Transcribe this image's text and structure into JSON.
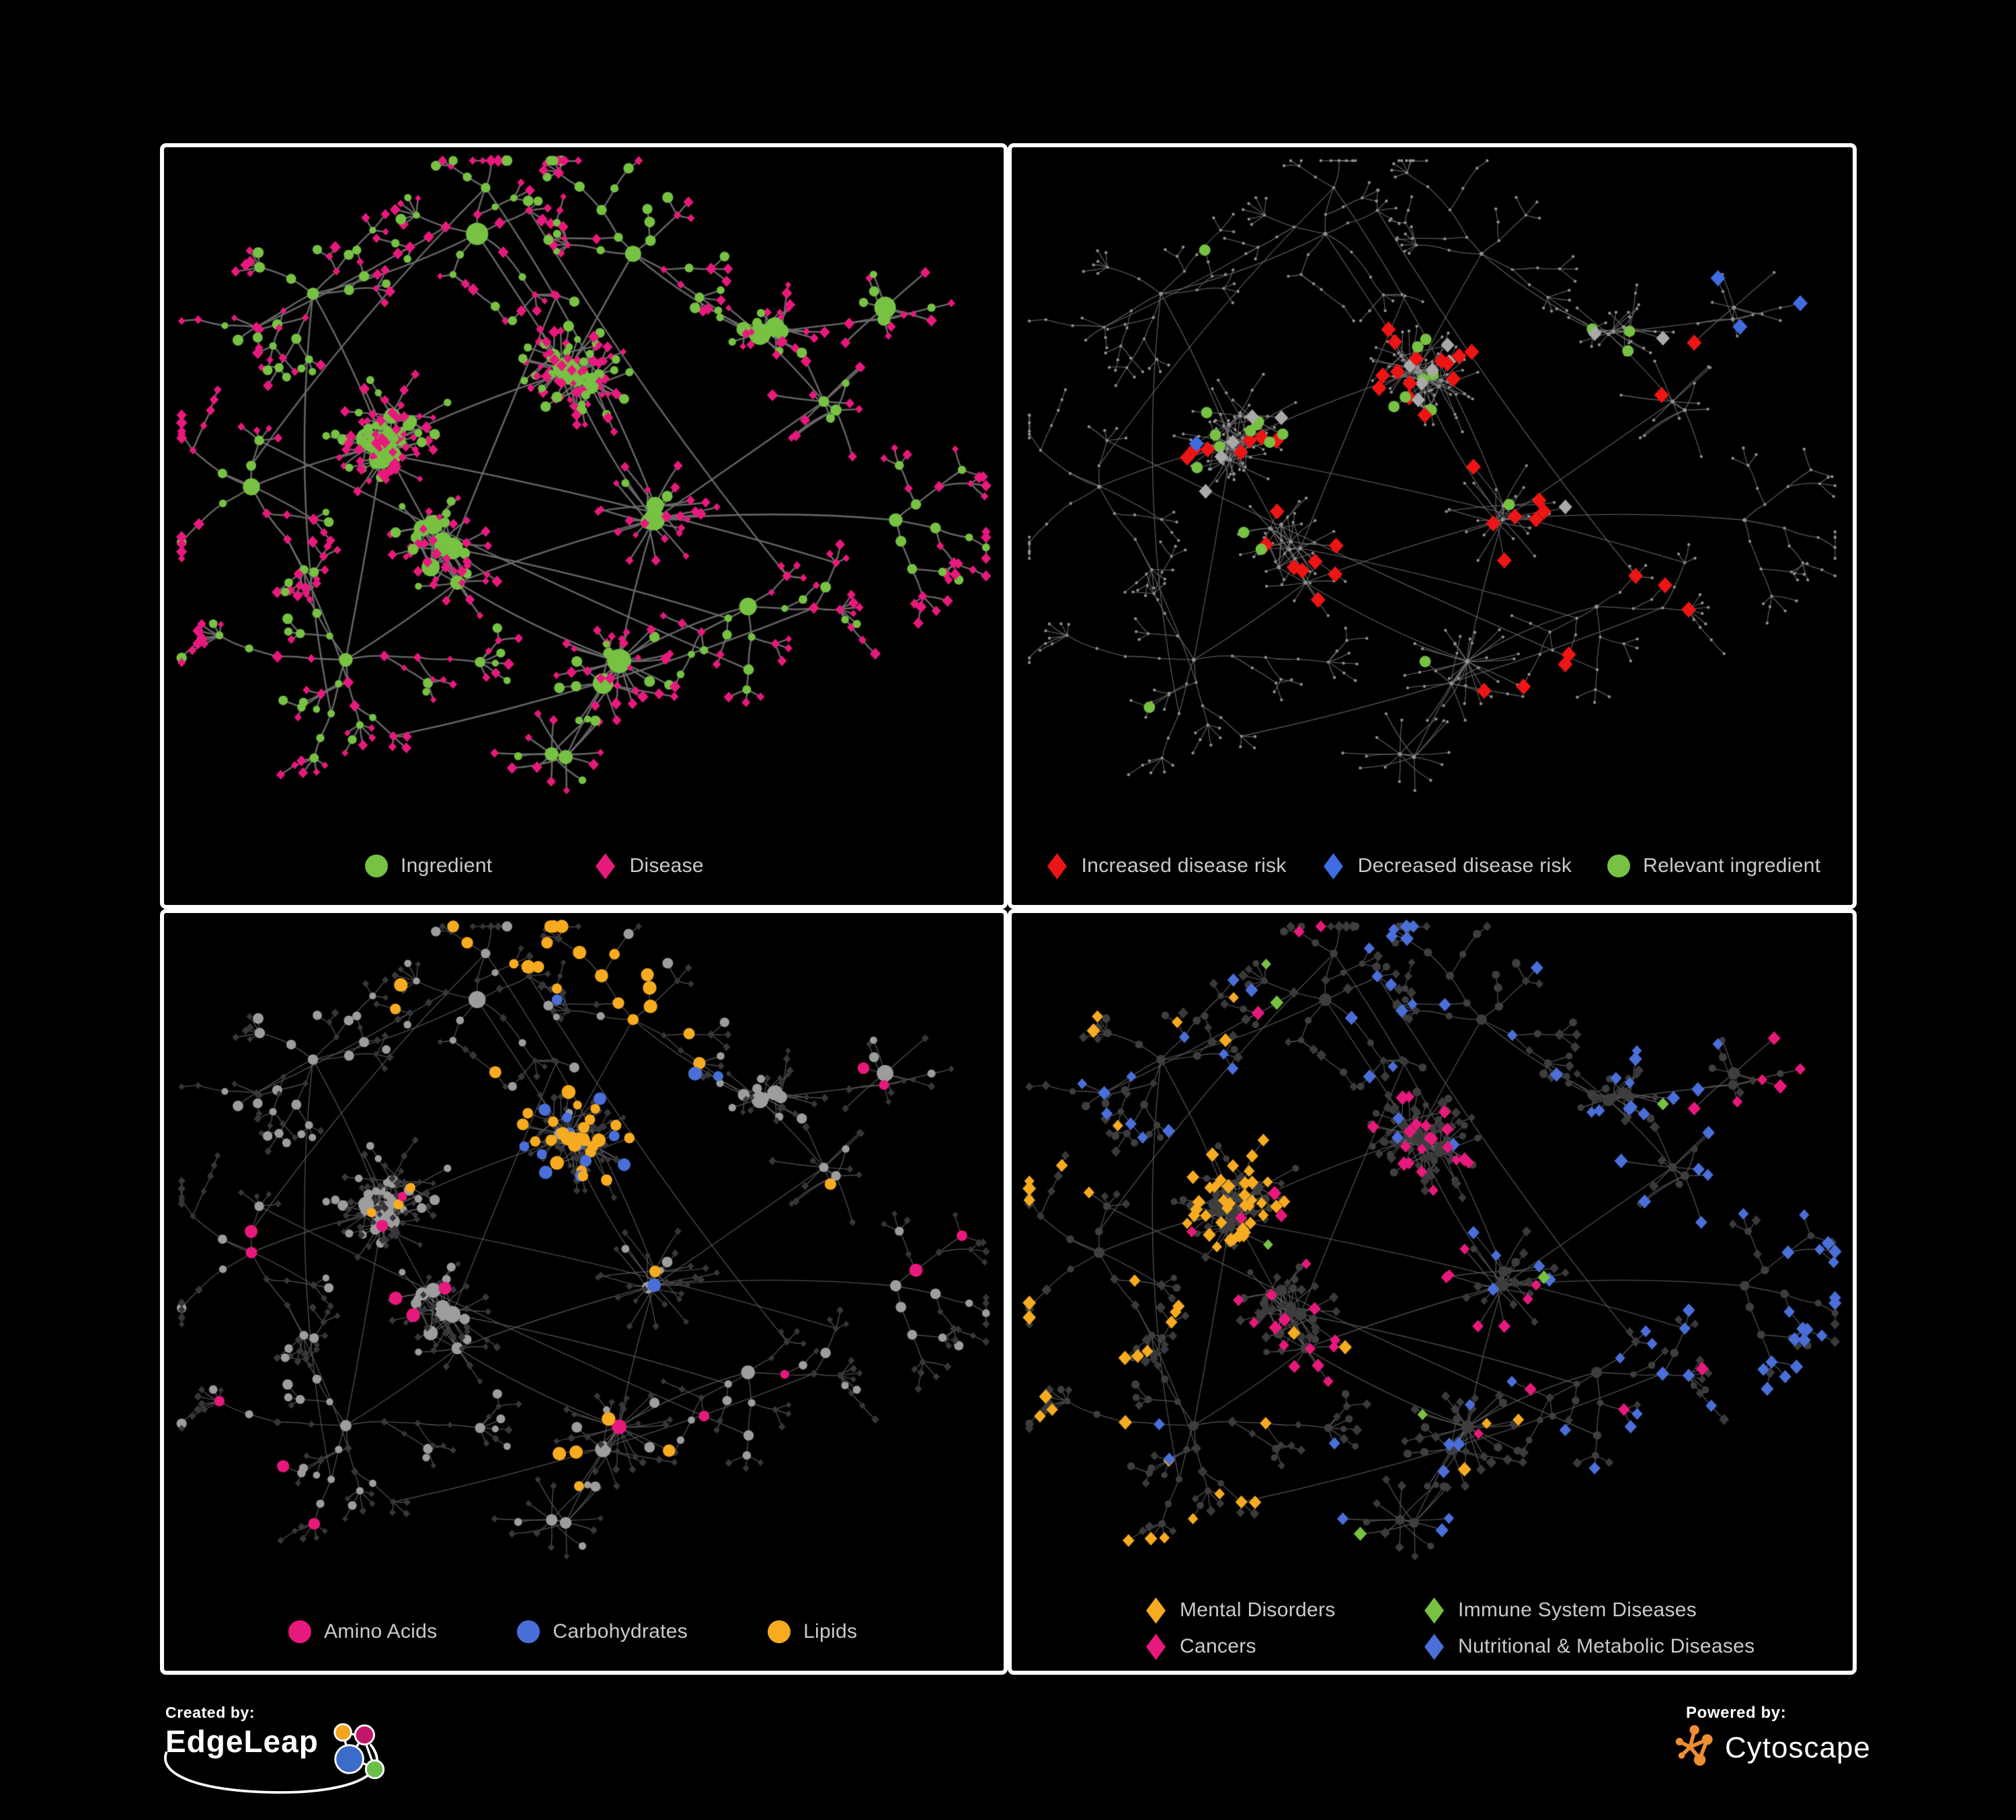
{
  "page": {
    "background": "#000000",
    "panel_border": "#ffffff",
    "legend_text_color": "#cacaca"
  },
  "panels": [
    {
      "id": "ingredient-disease-network",
      "legend": [
        {
          "label": "Ingredient",
          "shape": "circle",
          "color": "#77c143"
        },
        {
          "label": "Disease",
          "shape": "diamond",
          "color": "#e8197d"
        }
      ],
      "style": {
        "edge": "#6d6d6d",
        "edgeW": 2.6,
        "ingredient": "#77c143",
        "disease": "#e8197d"
      }
    },
    {
      "id": "disease-risk-network",
      "legend": [
        {
          "label": "Increased disease risk",
          "shape": "diamond",
          "color": "#ed1515"
        },
        {
          "label": "Decreased disease risk",
          "shape": "diamond",
          "color": "#3f6ce0"
        },
        {
          "label": "Relevant ingredient",
          "shape": "circle",
          "color": "#77c143"
        }
      ],
      "style": {
        "edge": "#6f6f6f",
        "edgeW": 1.3,
        "base": "#8f8f8f",
        "red": "#ed1515",
        "blue": "#3f6ce0",
        "gray": "#a9a9a9",
        "green": "#77c143"
      }
    },
    {
      "id": "ingredient-classes-network",
      "legend": [
        {
          "label": "Amino Acids",
          "shape": "circle",
          "color": "#e8197d"
        },
        {
          "label": "Carbohydrates",
          "shape": "circle",
          "color": "#4a6fd9"
        },
        {
          "label": "Lipids",
          "shape": "circle",
          "color": "#f7ab20"
        }
      ],
      "style": {
        "edge": "#5f5f5f",
        "edgeW": 1.4,
        "ingredient": "#9d9d9d",
        "disease": "#36363b",
        "amino": "#e8197d",
        "carb": "#4a6fd9",
        "lipid": "#f7ab20"
      }
    },
    {
      "id": "disease-categories-network",
      "legend": [
        {
          "label": "Mental Disorders",
          "shape": "diamond",
          "color": "#f7ab20"
        },
        {
          "label": "Immune System Diseases",
          "shape": "diamond",
          "color": "#77c143"
        },
        {
          "label": "Cancers",
          "shape": "diamond",
          "color": "#e8197d"
        },
        {
          "label": "Nutritional & Metabolic Diseases",
          "shape": "diamond",
          "color": "#4a6fd9"
        }
      ],
      "style": {
        "edge": "#5f5f5f",
        "edgeW": 1.4,
        "ingredient": "#3e3e3e",
        "disease": "#3a3a3a",
        "mental": "#f7ab20",
        "immune": "#77c143",
        "cancer": "#e8197d",
        "nutri": "#4a6fd9"
      }
    }
  ],
  "footer": {
    "created_by": "Created by:",
    "brand": "EdgeLeap",
    "powered_by": "Powered by:",
    "engine": "Cytoscape",
    "edgeleap_colors": {
      "orange": "#f2a51c",
      "magenta": "#c2186b",
      "blue": "#3b6cc7",
      "green": "#6abf4b"
    },
    "cytoscape_orange": "#ef8d33"
  }
}
